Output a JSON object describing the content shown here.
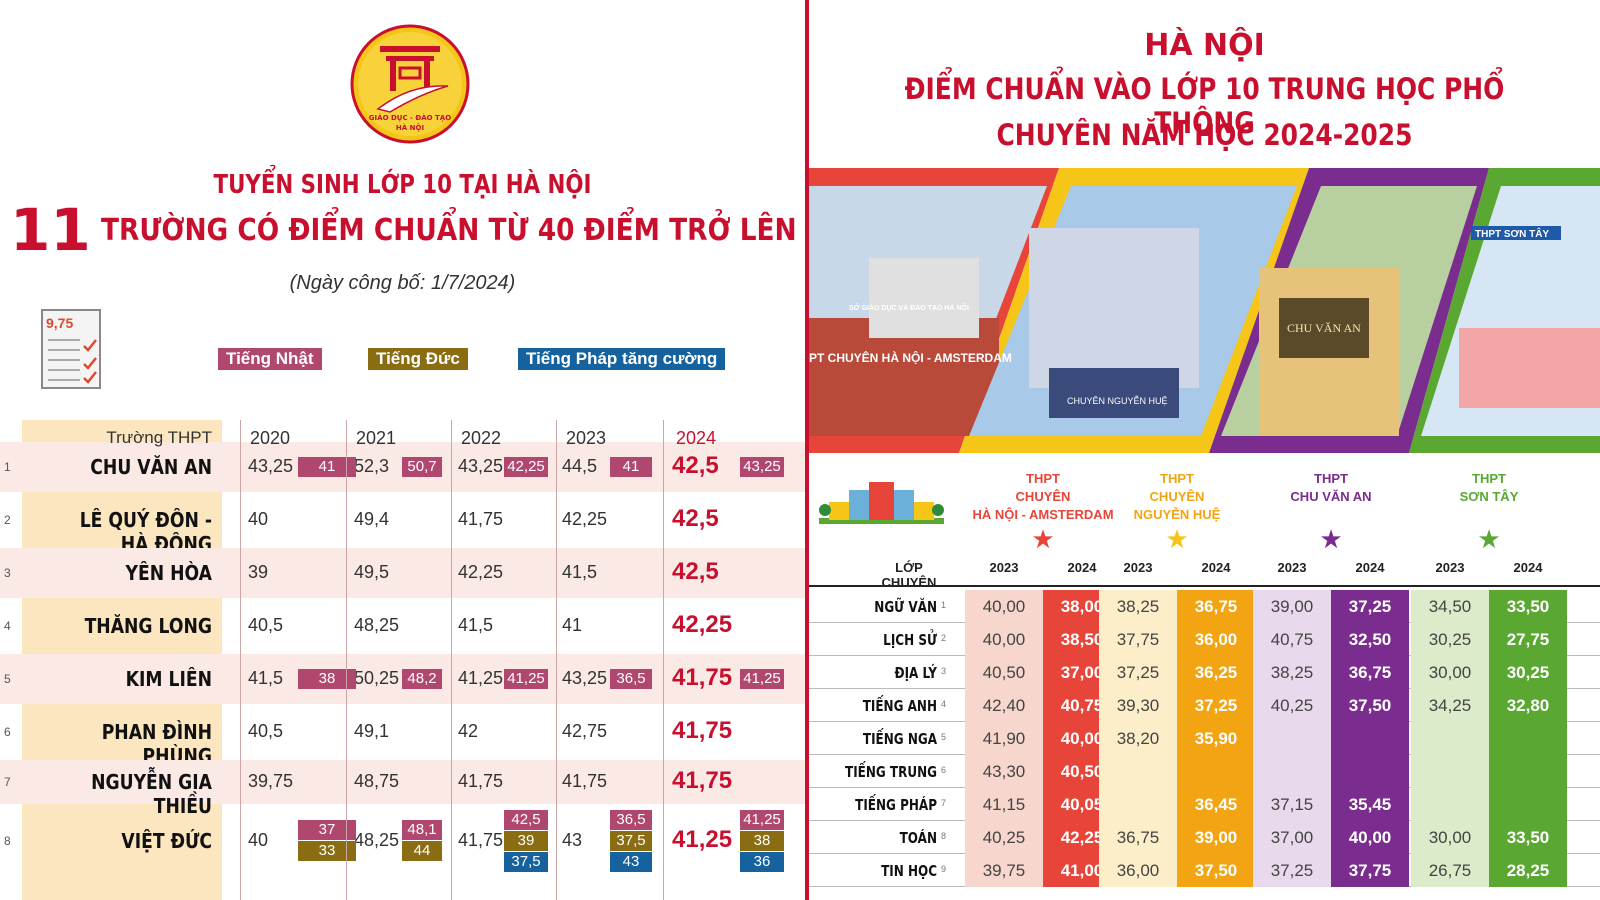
{
  "left": {
    "logo_text": {
      "line1": "GIÁO DỤC - ĐÀO TẠO",
      "line2": "HÀ NỘI"
    },
    "title_line1": "TUYỂN SINH LỚP 10 TẠI HÀ NỘI",
    "big_number": "11",
    "title_line2": "TRƯỜNG CÓ ĐIỂM CHUẨN TỪ 40 ĐIỂM TRỞ LÊN",
    "date": "(Ngày công bố: 1/7/2024)",
    "doc_score": "9,75",
    "legend": [
      "Tiếng Nhật",
      "Tiếng Đức",
      "Tiếng Pháp tăng cường"
    ],
    "headers": [
      "Trường THPT",
      "2020",
      "2021",
      "2022",
      "2023",
      "2024"
    ],
    "rows": [
      {
        "n": "1",
        "name": "CHU VĂN AN",
        "y2020": "43,25",
        "y2021": "52,3",
        "y2022": "43,25",
        "y2023": "44,5",
        "y2024": "42,5",
        "b2020": [
          {
            "t": "41",
            "c": "j"
          }
        ],
        "b2021": [
          {
            "t": "50,7",
            "c": "j"
          }
        ],
        "b2022": [
          {
            "t": "42,25",
            "c": "j"
          }
        ],
        "b2023": [
          {
            "t": "41",
            "c": "j"
          }
        ],
        "b2024": [
          {
            "t": "43,25",
            "c": "j"
          }
        ]
      },
      {
        "n": "2",
        "name": "LÊ QUÝ ĐÔN - HÀ ĐÔNG",
        "y2020": "40",
        "y2021": "49,4",
        "y2022": "41,75",
        "y2023": "42,25",
        "y2024": "42,5"
      },
      {
        "n": "3",
        "name": "YÊN HÒA",
        "y2020": "39",
        "y2021": "49,5",
        "y2022": "42,25",
        "y2023": "41,5",
        "y2024": "42,5"
      },
      {
        "n": "4",
        "name": "THĂNG LONG",
        "y2020": "40,5",
        "y2021": "48,25",
        "y2022": "41,5",
        "y2023": "41",
        "y2024": "42,25"
      },
      {
        "n": "5",
        "name": "KIM LIÊN",
        "y2020": "41,5",
        "y2021": "50,25",
        "y2022": "41,25",
        "y2023": "43,25",
        "y2024": "41,75",
        "b2020": [
          {
            "t": "38",
            "c": "j"
          }
        ],
        "b2021": [
          {
            "t": "48,2",
            "c": "j"
          }
        ],
        "b2022": [
          {
            "t": "41,25",
            "c": "j"
          }
        ],
        "b2023": [
          {
            "t": "36,5",
            "c": "j"
          }
        ],
        "b2024": [
          {
            "t": "41,25",
            "c": "j"
          }
        ]
      },
      {
        "n": "6",
        "name": "PHAN ĐÌNH PHÙNG",
        "y2020": "40,5",
        "y2021": "49,1",
        "y2022": "42",
        "y2023": "42,75",
        "y2024": "41,75"
      },
      {
        "n": "7",
        "name": "NGUYỄN GIA THIỀU",
        "y2020": "39,75",
        "y2021": "48,75",
        "y2022": "41,75",
        "y2023": "41,75",
        "y2024": "41,75"
      },
      {
        "n": "8",
        "name": "VIỆT ĐỨC",
        "y2020": "40",
        "y2021": "48,25",
        "y2022": "41,75",
        "y2023": "43",
        "y2024": "41,25",
        "b2020": [
          {
            "t": "37",
            "c": "j"
          },
          {
            "t": "33",
            "c": "g"
          }
        ],
        "b2021": [
          {
            "t": "48,1",
            "c": "j"
          },
          {
            "t": "44",
            "c": "g"
          }
        ],
        "b2022": [
          {
            "t": "42,5",
            "c": "j"
          },
          {
            "t": "39",
            "c": "g"
          },
          {
            "t": "37,5",
            "c": "f"
          }
        ],
        "b2023": [
          {
            "t": "36,5",
            "c": "j"
          },
          {
            "t": "37,5",
            "c": "g"
          },
          {
            "t": "43",
            "c": "f"
          }
        ],
        "b2024": [
          {
            "t": "41,25",
            "c": "j"
          },
          {
            "t": "38",
            "c": "g"
          },
          {
            "t": "36",
            "c": "f"
          }
        ]
      }
    ]
  },
  "right": {
    "title1": "HÀ NỘI",
    "title2": "ĐIỂM CHUẨN VÀO LỚP 10 TRUNG HỌC PHỔ THÔNG",
    "title3": "CHUYÊN NĂM HỌC 2024-2025",
    "photo_signs": [
      "SỞ GIÁO DỤC VÀ ĐÀO TẠO HÀ NỘI",
      "PT CHUYÊN HÀ NỘI - AMSTERDAM",
      "CHUYÊN NGUYỄN HUỆ",
      "CHU VĂN AN",
      "THPT SƠN TÂY"
    ],
    "schools": [
      {
        "name": [
          "THPT",
          "CHUYÊN",
          "HÀ NỘI - AMSTERDAM"
        ],
        "color": "#e8453a",
        "light": "#f6d6cd",
        "star": "#e8453a"
      },
      {
        "name": [
          "THPT",
          "CHUYÊN",
          "NGUYỄN HUỆ"
        ],
        "color": "#f2a413",
        "light": "#fbeec9",
        "star": "#f5c518"
      },
      {
        "name": [
          "THPT",
          "CHU VĂN AN"
        ],
        "color": "#7a2c8f",
        "light": "#e9d9ec",
        "star": "#7a2c8f"
      },
      {
        "name": [
          "THPT",
          "SƠN TÂY"
        ],
        "color": "#5aa832",
        "light": "#dcebc9",
        "star": "#5aa832"
      }
    ],
    "col_label": "LỚP CHUYÊN",
    "years": [
      "2023",
      "2024"
    ],
    "rows": [
      {
        "n": "1",
        "sub": "NGỮ VĂN",
        "v": [
          "40,00",
          "38,00",
          "38,25",
          "36,75",
          "39,00",
          "37,25",
          "34,50",
          "33,50"
        ]
      },
      {
        "n": "2",
        "sub": "LỊCH SỬ",
        "v": [
          "40,00",
          "38,50",
          "37,75",
          "36,00",
          "40,75",
          "32,50",
          "30,25",
          "27,75"
        ]
      },
      {
        "n": "3",
        "sub": "ĐỊA LÝ",
        "v": [
          "40,50",
          "37,00",
          "37,25",
          "36,25",
          "38,25",
          "36,75",
          "30,00",
          "30,25"
        ]
      },
      {
        "n": "4",
        "sub": "TIẾNG ANH",
        "v": [
          "42,40",
          "40,75",
          "39,30",
          "37,25",
          "40,25",
          "37,50",
          "34,25",
          "32,80"
        ]
      },
      {
        "n": "5",
        "sub": "TIẾNG NGA",
        "v": [
          "41,90",
          "40,00",
          "38,20",
          "35,90",
          "",
          "",
          "",
          ""
        ]
      },
      {
        "n": "6",
        "sub": "TIẾNG TRUNG",
        "v": [
          "43,30",
          "40,50",
          "",
          "",
          "",
          "",
          "",
          ""
        ]
      },
      {
        "n": "7",
        "sub": "TIẾNG PHÁP",
        "v": [
          "41,15",
          "40,05",
          "",
          "36,45",
          "37,15",
          "35,45",
          "",
          ""
        ]
      },
      {
        "n": "8",
        "sub": "TOÁN",
        "v": [
          "40,25",
          "42,25",
          "36,75",
          "39,00",
          "37,00",
          "40,00",
          "30,00",
          "33,50"
        ]
      },
      {
        "n": "9",
        "sub": "TIN HỌC",
        "v": [
          "39,75",
          "41,00",
          "36,00",
          "37,50",
          "37,25",
          "37,75",
          "26,75",
          "28,25"
        ]
      }
    ]
  }
}
